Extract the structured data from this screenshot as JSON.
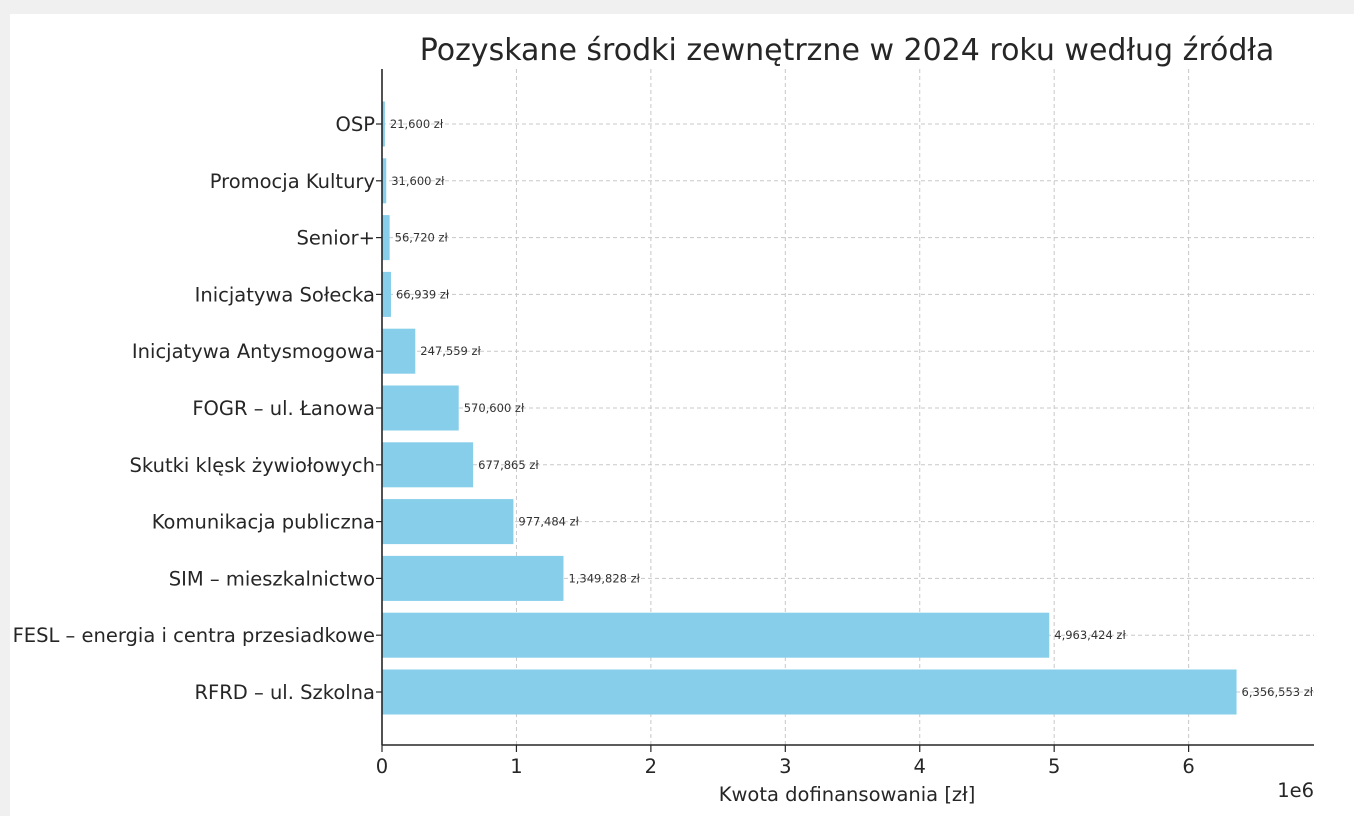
{
  "chart_data": {
    "type": "bar",
    "orientation": "horizontal",
    "title": "Pozyskane środki zewnętrzne w 2024 roku według źródła",
    "xlabel": "Kwota dofinansowania [zł]",
    "ylabel": "",
    "xlim": [
      0,
      6650000
    ],
    "x_ticks": [
      0,
      1,
      2,
      3,
      4,
      5,
      6
    ],
    "x_tick_labels": [
      "0",
      "1",
      "2",
      "3",
      "4",
      "5",
      "6"
    ],
    "x_scale_note": "1e6",
    "grid": true,
    "bar_color": "#87ceeb",
    "categories": [
      "OSP",
      "Promocja Kultury",
      "Senior+",
      "Inicjatywa Sołecka",
      "Inicjatywa Antysmogowa",
      "FOGR – ul. Łanowa",
      "Skutki klęsk żywiołowych",
      "Komunikacja publiczna",
      "SIM – mieszkalnictwo",
      "FESL – energia i centra przesiadkowe",
      "RFRD – ul. Szkolna"
    ],
    "values": [
      21600,
      31600,
      56720,
      66939,
      247559,
      570600,
      677865,
      977484,
      1349828,
      4963424,
      6356553
    ],
    "value_labels": [
      "21,600 zł",
      "31,600 zł",
      "56,720 zł",
      "66,939 zł",
      "247,559 zł",
      "570,600 zł",
      "677,865 zł",
      "977,484 zł",
      "1,349,828 zł",
      "4,963,424 zł",
      "6,356,553 zł"
    ]
  }
}
